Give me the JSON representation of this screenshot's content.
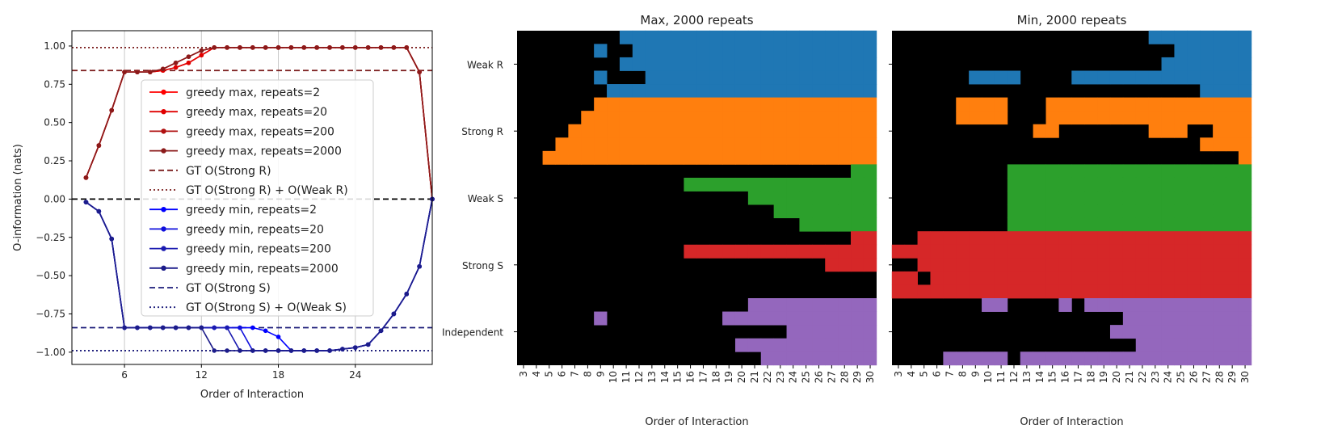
{
  "chart_data": [
    {
      "type": "line",
      "xlabel": "Order of Interaction",
      "ylabel": "O-information (nats)",
      "xlim": [
        1.9,
        30.0
      ],
      "ylim": [
        -1.08,
        1.1
      ],
      "xticks": [
        6,
        12,
        18,
        24
      ],
      "yticks": [
        1.0,
        0.75,
        0.5,
        0.25,
        0.0,
        -0.25,
        -0.5,
        -0.75,
        -1.0
      ],
      "ytick_labels": [
        "1.00",
        "0.75",
        "0.50",
        "0.25",
        "0.00",
        "−0.25",
        "−0.50",
        "−0.75",
        "−1.00"
      ],
      "grid": "vertical",
      "legend_position": "center",
      "x": [
        3,
        4,
        5,
        6,
        7,
        8,
        9,
        10,
        11,
        12,
        13,
        14,
        15,
        16,
        17,
        18,
        19,
        20,
        21,
        22,
        23,
        24,
        25,
        26,
        27,
        28,
        29,
        30
      ],
      "series": [
        {
          "name": "greedy max, repeats=2",
          "color": "#ff0000",
          "values": [
            0.14,
            0.35,
            0.58,
            0.83,
            0.83,
            0.83,
            0.84,
            0.86,
            0.89,
            0.94,
            0.99,
            0.99,
            0.99,
            0.99,
            0.99,
            0.99,
            0.99,
            0.99,
            0.99,
            0.99,
            0.99,
            0.99,
            0.99,
            0.99,
            0.99,
            0.99,
            0.83,
            0.0
          ]
        },
        {
          "name": "greedy max, repeats=20",
          "color": "#e00000",
          "values": [
            0.14,
            0.35,
            0.58,
            0.83,
            0.83,
            0.83,
            0.84,
            0.86,
            0.89,
            0.94,
            0.99,
            0.99,
            0.99,
            0.99,
            0.99,
            0.99,
            0.99,
            0.99,
            0.99,
            0.99,
            0.99,
            0.99,
            0.99,
            0.99,
            0.99,
            0.99,
            0.83,
            0.0
          ]
        },
        {
          "name": "greedy max, repeats=200",
          "color": "#b01010",
          "values": [
            0.14,
            0.35,
            0.58,
            0.83,
            0.83,
            0.83,
            0.85,
            0.89,
            0.93,
            0.97,
            0.99,
            0.99,
            0.99,
            0.99,
            0.99,
            0.99,
            0.99,
            0.99,
            0.99,
            0.99,
            0.99,
            0.99,
            0.99,
            0.99,
            0.99,
            0.99,
            0.83,
            0.0
          ]
        },
        {
          "name": "greedy max, repeats=2000",
          "color": "#8b1a1a",
          "values": [
            0.14,
            0.35,
            0.58,
            0.83,
            0.83,
            0.83,
            0.85,
            0.89,
            0.93,
            0.97,
            0.99,
            0.99,
            0.99,
            0.99,
            0.99,
            0.99,
            0.99,
            0.99,
            0.99,
            0.99,
            0.99,
            0.99,
            0.99,
            0.99,
            0.99,
            0.99,
            0.83,
            0.0
          ]
        },
        {
          "name": "greedy min, repeats=2",
          "color": "#0000ff",
          "values": [
            -0.02,
            -0.08,
            -0.26,
            -0.84,
            -0.84,
            -0.84,
            -0.84,
            -0.84,
            -0.84,
            -0.84,
            -0.84,
            -0.84,
            -0.84,
            -0.84,
            -0.86,
            -0.9,
            -0.99,
            -0.99,
            -0.99,
            -0.99,
            -0.98,
            -0.97,
            -0.95,
            -0.86,
            -0.75,
            -0.62,
            -0.44,
            0.0
          ]
        },
        {
          "name": "greedy min, repeats=20",
          "color": "#1010dd",
          "values": [
            -0.02,
            -0.08,
            -0.26,
            -0.84,
            -0.84,
            -0.84,
            -0.84,
            -0.84,
            -0.84,
            -0.84,
            -0.84,
            -0.84,
            -0.84,
            -0.99,
            -0.99,
            -0.99,
            -0.99,
            -0.99,
            -0.99,
            -0.99,
            -0.98,
            -0.97,
            -0.95,
            -0.86,
            -0.75,
            -0.62,
            -0.44,
            0.0
          ]
        },
        {
          "name": "greedy min, repeats=200",
          "color": "#1a1ab0",
          "values": [
            -0.02,
            -0.08,
            -0.26,
            -0.84,
            -0.84,
            -0.84,
            -0.84,
            -0.84,
            -0.84,
            -0.84,
            -0.84,
            -0.84,
            -0.99,
            -0.99,
            -0.99,
            -0.99,
            -0.99,
            -0.99,
            -0.99,
            -0.99,
            -0.98,
            -0.97,
            -0.95,
            -0.86,
            -0.75,
            -0.62,
            -0.44,
            0.0
          ]
        },
        {
          "name": "greedy min, repeats=2000",
          "color": "#1c1c8a",
          "values": [
            -0.02,
            -0.08,
            -0.26,
            -0.84,
            -0.84,
            -0.84,
            -0.84,
            -0.84,
            -0.84,
            -0.84,
            -0.99,
            -0.99,
            -0.99,
            -0.99,
            -0.99,
            -0.99,
            -0.99,
            -0.99,
            -0.99,
            -0.99,
            -0.98,
            -0.97,
            -0.95,
            -0.86,
            -0.75,
            -0.62,
            -0.44,
            0.0
          ]
        }
      ],
      "reference_lines": [
        {
          "name": "GT O(Strong R)",
          "y": 0.84,
          "style": "dashed",
          "color": "#7a1c1c"
        },
        {
          "name": "GT O(Strong R) + O(Weak R)",
          "y": 0.99,
          "style": "dotted",
          "color": "#7a1c1c"
        },
        {
          "name": "GT O(Strong S)",
          "y": -0.84,
          "style": "dashed",
          "color": "#1c1c7a"
        },
        {
          "name": "GT O(Strong S) + O(Weak S)",
          "y": -0.99,
          "style": "dotted",
          "color": "#1c1c7a"
        },
        {
          "y": 0.0,
          "style": "dashed",
          "color": "#000000"
        }
      ]
    },
    {
      "type": "heatmap",
      "title": "Max, 2000 repeats",
      "xlabel": "Order of Interaction",
      "x_categories": [
        "3",
        "4",
        "5",
        "6",
        "7",
        "8",
        "9",
        "10",
        "11",
        "12",
        "13",
        "14",
        "15",
        "16",
        "17",
        "18",
        "19",
        "20",
        "21",
        "22",
        "23",
        "24",
        "25",
        "26",
        "27",
        "28",
        "29",
        "30"
      ],
      "group_labels": [
        "Weak R",
        "Strong R",
        "Weak S",
        "Strong S",
        "Independent"
      ],
      "group_colors": [
        "#1f77b4",
        "#ff7f0e",
        "#2ca02c",
        "#d62728",
        "#9467bd"
      ],
      "background_color": "#000000",
      "rows_per_group": 5,
      "row_onset": [
        [
          8,
          8,
          10,
          9,
          7
        ],
        [
          6,
          5,
          4,
          3,
          2
        ],
        [
          26,
          13,
          18,
          20,
          22
        ],
        [
          26,
          13,
          24,
          28,
          30
        ],
        [
          18,
          16,
          21,
          17,
          19
        ]
      ],
      "extra_cells": [
        [
          0,
          1,
          6
        ],
        [
          0,
          3,
          6
        ],
        [
          0,
          1,
          8
        ],
        [
          0,
          2,
          8
        ],
        [
          0,
          2,
          9
        ],
        [
          0,
          3,
          9
        ],
        [
          4,
          1,
          6
        ]
      ]
    },
    {
      "type": "heatmap",
      "title": "Min, 2000 repeats",
      "xlabel": "Order of Interaction",
      "x_categories": [
        "3",
        "4",
        "5",
        "6",
        "7",
        "8",
        "9",
        "10",
        "11",
        "12",
        "13",
        "14",
        "15",
        "16",
        "17",
        "18",
        "19",
        "20",
        "21",
        "22",
        "23",
        "24",
        "25",
        "26",
        "27",
        "28",
        "29",
        "30"
      ],
      "group_labels": [
        "Weak R",
        "Strong R",
        "Weak S",
        "Strong S",
        "Independent"
      ],
      "group_colors": [
        "#1f77b4",
        "#ff7f0e",
        "#2ca02c",
        "#d62728",
        "#9467bd"
      ],
      "background_color": "#000000",
      "row_segments": [
        [
          [
            [
              20,
              27
            ]
          ],
          [
            [
              22,
              27
            ]
          ],
          [
            [
              21,
              27
            ]
          ],
          [
            [
              6,
              9
            ],
            [
              14,
              27
            ]
          ],
          [
            [
              24,
              27
            ]
          ]
        ],
        [
          [
            [
              5,
              8
            ],
            [
              12,
              27
            ]
          ],
          [
            [
              5,
              8
            ],
            [
              12,
              27
            ]
          ],
          [
            [
              11,
              12
            ],
            [
              20,
              22
            ],
            [
              25,
              27
            ]
          ],
          [
            [
              24,
              27
            ]
          ],
          [
            [
              27,
              27
            ]
          ]
        ],
        [
          [
            [
              9,
              27
            ]
          ],
          [
            [
              9,
              27
            ]
          ],
          [
            [
              9,
              27
            ]
          ],
          [
            [
              9,
              27
            ]
          ],
          [
            [
              9,
              27
            ]
          ]
        ],
        [
          [
            [
              2,
              27
            ]
          ],
          [
            [
              0,
              27
            ]
          ],
          [
            [
              2,
              27
            ]
          ],
          [
            [
              0,
              1
            ],
            [
              3,
              27
            ]
          ],
          [
            [
              0,
              27
            ]
          ]
        ],
        [
          [
            [
              15,
              27
            ]
          ],
          [
            [
              18,
              27
            ]
          ],
          [
            [
              17,
              27
            ]
          ],
          [
            [
              19,
              27
            ]
          ],
          [
            [
              4,
              8
            ],
            [
              10,
              27
            ]
          ]
        ]
      ],
      "extra_cells": [
        [
          4,
          0,
          7
        ],
        [
          4,
          0,
          8
        ],
        [
          4,
          0,
          13
        ]
      ]
    }
  ]
}
